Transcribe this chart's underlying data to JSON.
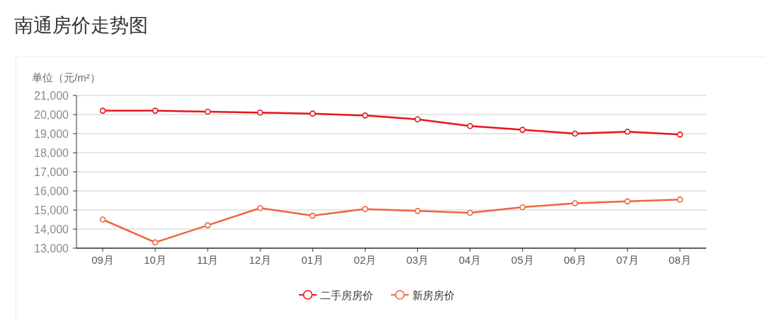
{
  "chart_data": {
    "type": "line",
    "title": "南通房价走势图",
    "ylabel": "单位（元/m²）",
    "categories": [
      "09月",
      "10月",
      "11月",
      "12月",
      "01月",
      "02月",
      "03月",
      "04月",
      "05月",
      "06月",
      "07月",
      "08月"
    ],
    "series": [
      {
        "name": "二手房房价",
        "color": "#e8141b",
        "values": [
          20200,
          20200,
          20150,
          20100,
          20050,
          19950,
          19750,
          19400,
          19200,
          19000,
          19100,
          18950
        ]
      },
      {
        "name": "新房房价",
        "color": "#f0643f",
        "values": [
          14500,
          13300,
          14200,
          15100,
          14700,
          15050,
          14950,
          14850,
          15150,
          15350,
          15450,
          15550
        ]
      }
    ],
    "ylim": [
      13000,
      21000
    ],
    "yticks": [
      {
        "value": 13000,
        "label": "13,000"
      },
      {
        "value": 14000,
        "label": "14,000"
      },
      {
        "value": 15000,
        "label": "15,000"
      },
      {
        "value": 16000,
        "label": "16,000"
      },
      {
        "value": 17000,
        "label": "17,000"
      },
      {
        "value": 18000,
        "label": "18,000"
      },
      {
        "value": 19000,
        "label": "19,000"
      },
      {
        "value": 20000,
        "label": "20,000"
      },
      {
        "value": 21000,
        "label": "21,000"
      }
    ],
    "grid": "y",
    "legend": "bottom",
    "marker": "circle",
    "line_style": "solid"
  }
}
